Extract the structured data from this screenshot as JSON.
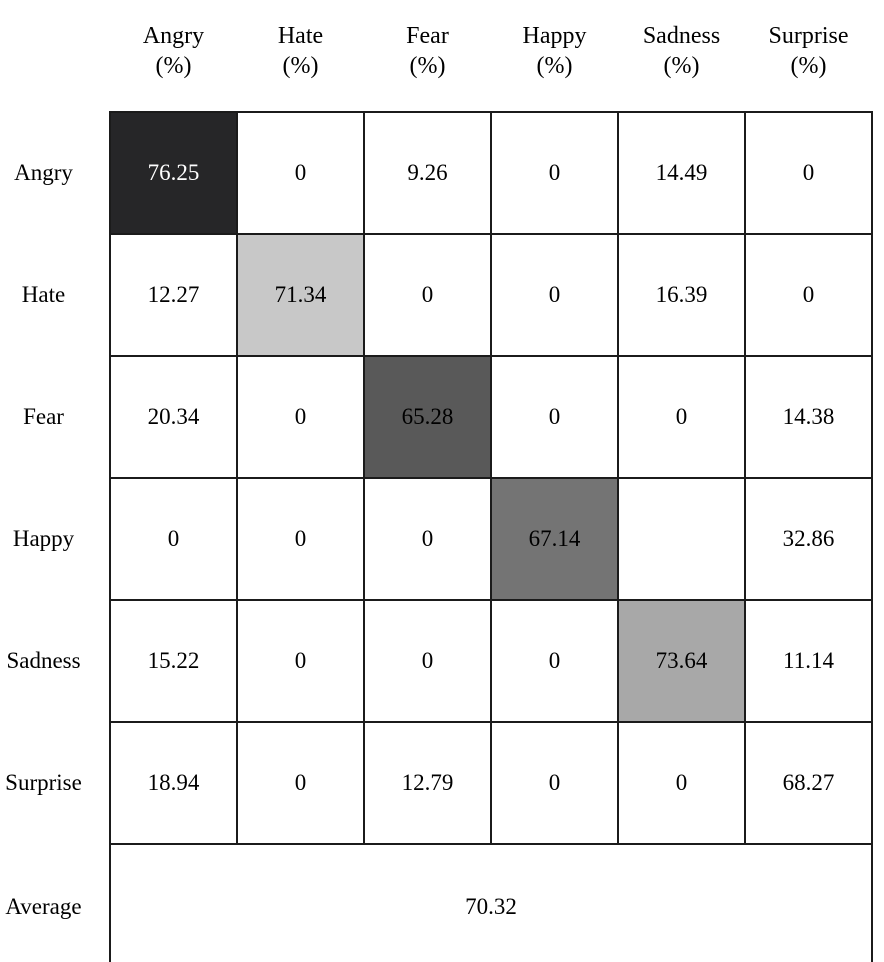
{
  "figure": {
    "kind": "confusion-matrix"
  },
  "colors": {
    "background": "#ffffff",
    "border": "#1b1b1b",
    "text": "#000000",
    "diagonal_angry": "#262628",
    "diagonal_angry_text": "#ffffff",
    "diagonal_hate": "#c8c8c8",
    "diagonal_fear": "#595959",
    "diagonal_happy": "#747474",
    "diagonal_sadness": "#a8a8a8",
    "diagonal_surprise": "#ffffff"
  },
  "header": {
    "columns": [
      {
        "label": "Angry",
        "unit": "(%)"
      },
      {
        "label": "Hate",
        "unit": "(%)"
      },
      {
        "label": "Fear",
        "unit": "(%)"
      },
      {
        "label": "Happy",
        "unit": "(%)"
      },
      {
        "label": "Sadness",
        "unit": "(%)"
      },
      {
        "label": "Surprise",
        "unit": "(%)"
      }
    ]
  },
  "matrix": {
    "row_labels": [
      "Angry",
      "Hate",
      "Fear",
      "Happy",
      "Sadness",
      "Surprise"
    ],
    "cells": [
      [
        "76.25",
        "0",
        "9.26",
        "0",
        "14.49",
        "0"
      ],
      [
        "12.27",
        "71.34",
        "0",
        "0",
        "16.39",
        "0"
      ],
      [
        "20.34",
        "0",
        "65.28",
        "0",
        "0",
        "14.38"
      ],
      [
        "0",
        "0",
        "0",
        "67.14",
        "",
        "32.86"
      ],
      [
        "15.22",
        "0",
        "0",
        "0",
        "73.64",
        "11.14"
      ],
      [
        "18.94",
        "0",
        "12.79",
        "0",
        "0",
        "68.27"
      ]
    ]
  },
  "average": {
    "label": "Average",
    "value": "70.32"
  },
  "chart_data": {
    "type": "heatmap",
    "title": "",
    "columns": [
      "Angry (%)",
      "Hate (%)",
      "Fear (%)",
      "Happy (%)",
      "Sadness (%)",
      "Surprise (%)"
    ],
    "rows": [
      "Angry",
      "Hate",
      "Fear",
      "Happy",
      "Sadness",
      "Surprise"
    ],
    "values": [
      [
        76.25,
        0,
        9.26,
        0,
        14.49,
        0
      ],
      [
        12.27,
        71.34,
        0,
        0,
        16.39,
        0
      ],
      [
        20.34,
        0,
        65.28,
        0,
        0,
        14.38
      ],
      [
        0,
        0,
        0,
        67.14,
        null,
        32.86
      ],
      [
        15.22,
        0,
        0,
        0,
        73.64,
        11.14
      ],
      [
        18.94,
        0,
        12.79,
        0,
        0,
        68.27
      ]
    ],
    "average": 70.32,
    "notes": "Diagonal cells shaded gray; Angry diagonal darkest with white text; Happy/Sadness cell blank; last row is a merged Average cell"
  }
}
